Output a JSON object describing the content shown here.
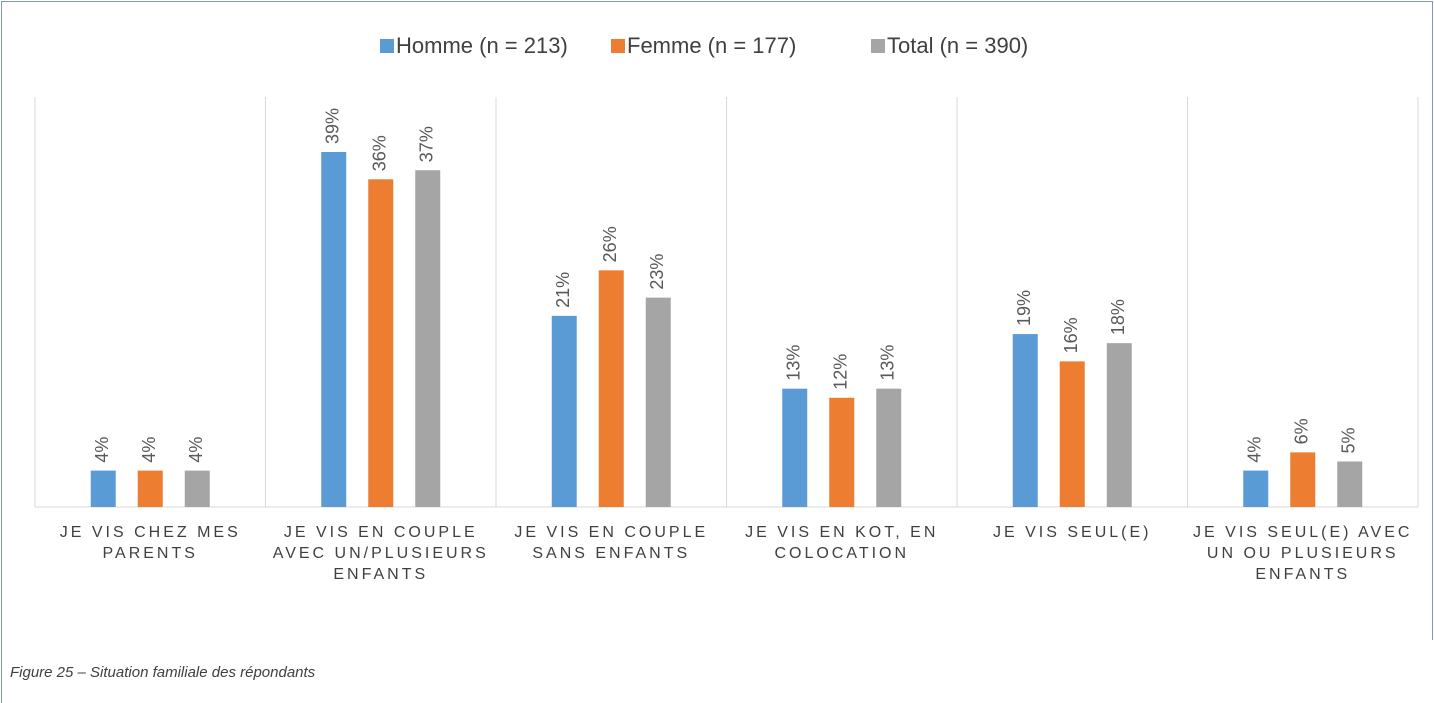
{
  "chart_data": {
    "type": "bar",
    "caption": "Figure 25 – Situation familiale des répondants",
    "categories": [
      "JE VIS CHEZ MES PARENTS",
      "JE VIS EN COUPLE AVEC UN/PLUSIEURS ENFANTS",
      "JE VIS EN COUPLE SANS ENFANTS",
      "JE VIS EN KOT, EN COLOCATION",
      "JE VIS SEUL(E)",
      "JE VIS SEUL(E) AVEC UN OU PLUSIEURS ENFANTS"
    ],
    "series": [
      {
        "name": "Homme (n = 213)",
        "color": "#5b9bd5",
        "values": [
          4,
          39,
          21,
          13,
          19,
          4
        ],
        "value_labels": [
          "4%",
          "39%",
          "21%",
          "13%",
          "19%",
          "4%"
        ]
      },
      {
        "name": "Femme (n = 177)",
        "color": "#ed7d31",
        "values": [
          4,
          36,
          26,
          12,
          16,
          6
        ],
        "value_labels": [
          "4%",
          "36%",
          "26%",
          "12%",
          "16%",
          "6%"
        ]
      },
      {
        "name": "Total (n = 390)",
        "color": "#a5a5a5",
        "values": [
          4,
          37,
          23,
          13,
          18,
          5
        ],
        "value_labels": [
          "4%",
          "37%",
          "23%",
          "13%",
          "18%",
          "5%"
        ]
      }
    ],
    "legend": "top"
  }
}
